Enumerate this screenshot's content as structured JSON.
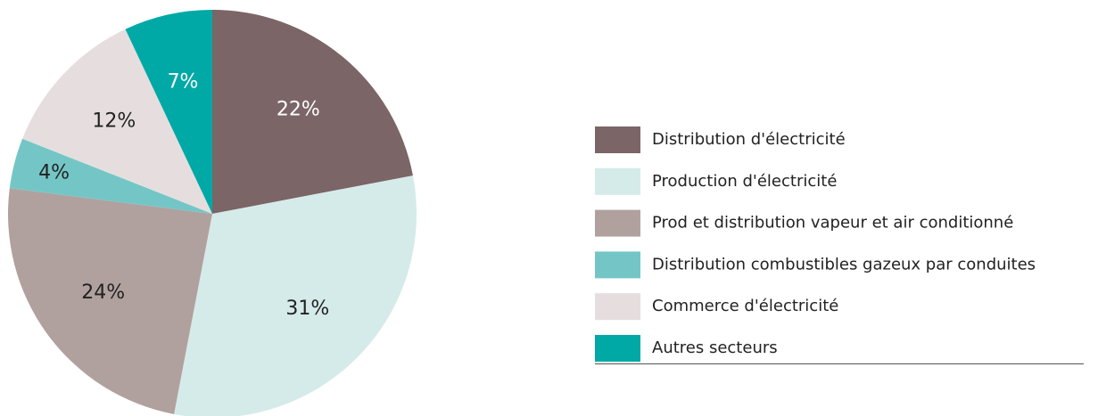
{
  "chart_data": {
    "type": "pie",
    "categories": [
      "Distribution d'électricité",
      "Production d'électricité",
      "Prod et distribution vapeur et air conditionné",
      "Distribution combustibles gazeux par conduites",
      "Commerce d'électricité",
      "Autres secteurs"
    ],
    "values": [
      22,
      31,
      24,
      4,
      12,
      7
    ],
    "value_labels": [
      "22%",
      "31%",
      "24%",
      "4%",
      "12%",
      "7%"
    ],
    "colors": [
      "#7b6566",
      "#d5ebe9",
      "#b0a19f",
      "#74c6c6",
      "#e6dede",
      "#00a9a6"
    ],
    "legend": "right"
  }
}
